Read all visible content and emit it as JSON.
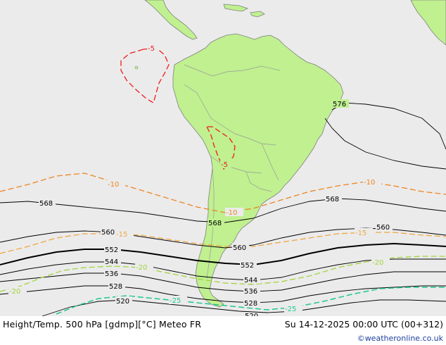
{
  "map": {
    "colors": {
      "ocean": "#ebebeb",
      "land": "#c0f090",
      "coast": "#7f7f7f",
      "border": "#9a9a9a",
      "height_contour": "#000000",
      "temp_minus5": "#ee1c1c",
      "temp_minus10": "#ee8422",
      "temp_minus15": "#f0a640",
      "temp_minus20": "#a0d43c",
      "temp_minus25": "#1ec88c"
    },
    "height_labels": {
      "l576": "576",
      "l568a": "568",
      "l568b": "568",
      "l568c": "568",
      "l560a": "560",
      "l560b": "560",
      "l560c": "560",
      "l552a": "552",
      "l552b": "552",
      "l544a": "544",
      "l544b": "544",
      "l536a": "536",
      "l536b": "536",
      "l528a": "528",
      "l528b": "528",
      "l520": "520",
      "l520b": "520"
    },
    "temp_labels": {
      "m5a": "-5",
      "m5b": "-5",
      "m10a": "-10",
      "m10b": "-10",
      "m10c": "-10",
      "m15a": "-15",
      "m15b": "-15",
      "m20a": "-20",
      "m20b": "-20",
      "m20c": "-20",
      "m25a": "-25",
      "m25b": "-25"
    }
  },
  "footer": {
    "title": "Height/Temp. 500 hPa [gdmp][°C] Meteo FR",
    "datetime": "Su 14-12-2025 00:00 UTC (00+312)",
    "credit": "©weatheronline.co.uk"
  }
}
